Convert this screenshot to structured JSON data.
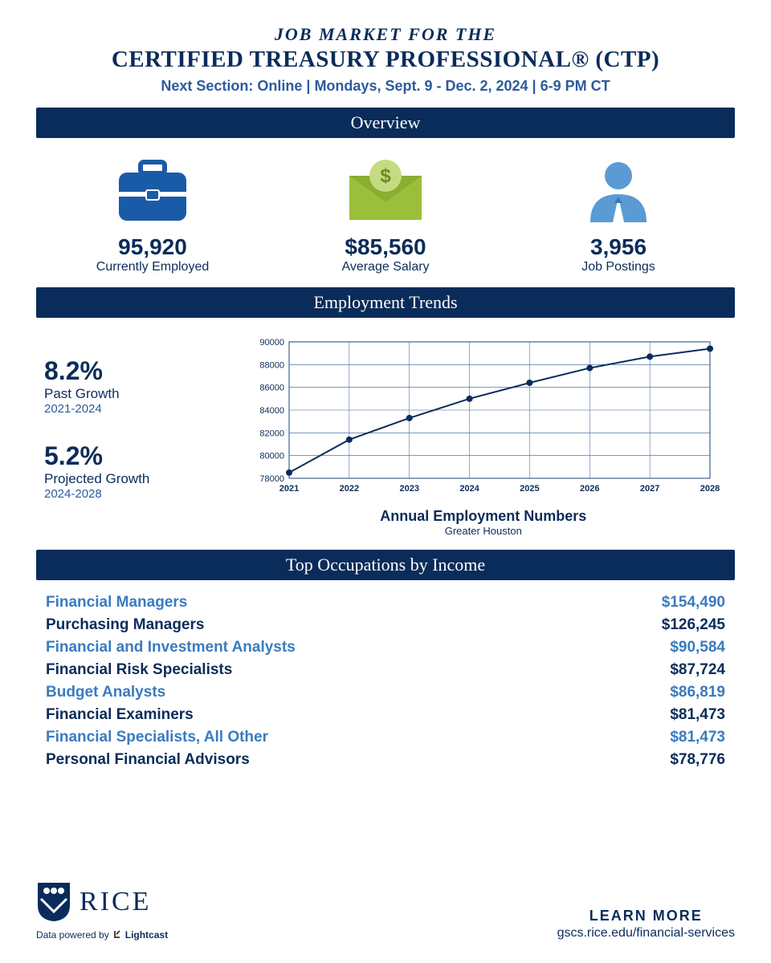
{
  "header": {
    "subtitle": "JOB MARKET FOR THE",
    "title": "CERTIFIED TREASURY PROFESSIONAL® (CTP)",
    "info": "Next Section: Online | Mondays, Sept. 9 - Dec. 2, 2024 | 6-9 PM CT"
  },
  "sections": {
    "overview": "Overview",
    "trends": "Employment Trends",
    "occupations": "Top Occupations by Income"
  },
  "overview": {
    "employed": {
      "value": "95,920",
      "label": "Currently Employed"
    },
    "salary": {
      "value": "$85,560",
      "label": "Average Salary"
    },
    "postings": {
      "value": "3,956",
      "label": "Job Postings"
    }
  },
  "colors": {
    "navy": "#0a2c5a",
    "blue_icon": "#1a5ba8",
    "green_icon": "#9bbf3b",
    "light_blue_icon": "#5a9bd4",
    "alt_row": "#3a7bbf",
    "grid": "#2d5b9a",
    "line": "#0a2c5a"
  },
  "trends": {
    "past": {
      "value": "8.2%",
      "label": "Past Growth",
      "period": "2021-2024"
    },
    "projected": {
      "value": "5.2%",
      "label": "Projected Growth",
      "period": "2024-2028"
    },
    "chart": {
      "type": "line",
      "years": [
        "2021",
        "2022",
        "2023",
        "2024",
        "2025",
        "2026",
        "2027",
        "2028"
      ],
      "values": [
        78500,
        81400,
        83300,
        85000,
        86400,
        87700,
        88700,
        89400
      ],
      "ylim": [
        78000,
        90000
      ],
      "ytick_step": 2000,
      "yticks": [
        "78000",
        "80000",
        "82000",
        "84000",
        "86000",
        "88000",
        "90000"
      ],
      "marker": "circle",
      "caption": "Annual Employment Numbers",
      "subcaption": "Greater Houston"
    }
  },
  "occupations": [
    {
      "title": "Financial Managers",
      "income": "$154,490",
      "alt": true
    },
    {
      "title": "Purchasing Managers",
      "income": "$126,245",
      "alt": false
    },
    {
      "title": "Financial and Investment Analysts",
      "income": "$90,584",
      "alt": true
    },
    {
      "title": "Financial Risk Specialists",
      "income": "$87,724",
      "alt": false
    },
    {
      "title": "Budget Analysts",
      "income": "$86,819",
      "alt": true
    },
    {
      "title": "Financial Examiners",
      "income": "$81,473",
      "alt": false
    },
    {
      "title": "Financial Specialists, All Other",
      "income": "$81,473",
      "alt": true
    },
    {
      "title": "Personal Financial Advisors",
      "income": "$78,776",
      "alt": false
    }
  ],
  "footer": {
    "brand": "RICE",
    "powered": "Data powered by",
    "powered_brand": "Lightcast",
    "learn_more": "LEARN MORE",
    "url": "gscs.rice.edu/financial-services"
  }
}
